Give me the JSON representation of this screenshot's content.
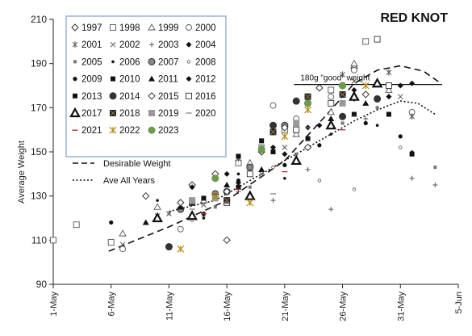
{
  "chart_data": {
    "type": "scatter",
    "title": "RED KNOT",
    "xlabel": "",
    "ylabel": "Average Weight",
    "xlim": [
      0,
      35
    ],
    "ylim": [
      90,
      210
    ],
    "x_ticks": [
      {
        "x": 0,
        "label": "1-May"
      },
      {
        "x": 5,
        "label": "6-May"
      },
      {
        "x": 10,
        "label": "11-May"
      },
      {
        "x": 15,
        "label": "16-May"
      },
      {
        "x": 20,
        "label": "21-May"
      },
      {
        "x": 25,
        "label": "26-May"
      },
      {
        "x": 30,
        "label": "31-May"
      },
      {
        "x": 35,
        "label": "5-Jun"
      }
    ],
    "y_ticks": [
      {
        "y": 90,
        "label": "90"
      },
      {
        "y": 110,
        "label": "110"
      },
      {
        "y": 130,
        "label": "130"
      },
      {
        "y": 150,
        "label": "150"
      },
      {
        "y": 170,
        "label": "170"
      },
      {
        "y": 190,
        "label": "190"
      },
      {
        "y": 210,
        "label": "210"
      }
    ],
    "x_unit_note": "x = days after 1-May",
    "good_weight": {
      "y": 180.5,
      "x_start": 20.8,
      "x_end": 33.6,
      "label": "180g \"good\" weight"
    },
    "series": [
      {
        "name": "1997",
        "marker": "diamond-open",
        "color": "#333333",
        "points": [
          [
            8,
            130
          ],
          [
            12,
            135
          ],
          [
            14,
            140
          ],
          [
            15,
            110
          ],
          [
            22,
            152
          ],
          [
            26,
            188
          ]
        ]
      },
      {
        "name": "1998",
        "marker": "square-open",
        "color": "#555555",
        "points": [
          [
            0,
            110
          ],
          [
            2,
            117
          ],
          [
            5,
            109
          ],
          [
            16,
            145
          ],
          [
            20,
            160
          ],
          [
            24,
            178
          ],
          [
            27,
            200
          ]
        ]
      },
      {
        "name": "1999",
        "marker": "triangle-open",
        "color": "#555555",
        "points": [
          [
            6,
            113
          ],
          [
            9,
            125
          ],
          [
            13,
            128
          ],
          [
            17,
            145
          ],
          [
            21,
            158
          ],
          [
            24,
            168
          ],
          [
            26,
            190
          ],
          [
            29,
            178
          ]
        ]
      },
      {
        "name": "2000",
        "marker": "circle-open",
        "color": "#555555",
        "points": [
          [
            6,
            106
          ],
          [
            11,
            115
          ],
          [
            19,
            171
          ],
          [
            21,
            165
          ],
          [
            24,
            175
          ],
          [
            26,
            187
          ],
          [
            31,
            168
          ]
        ]
      },
      {
        "name": "2001",
        "marker": "asterisk",
        "color": "#555555",
        "points": [
          [
            9,
            121
          ],
          [
            16,
            147
          ],
          [
            21,
            160
          ],
          [
            25,
            185
          ],
          [
            29,
            186
          ],
          [
            31,
            166
          ]
        ]
      },
      {
        "name": "2002",
        "marker": "x",
        "color": "#555555",
        "points": [
          [
            6,
            108
          ],
          [
            10,
            122
          ],
          [
            13,
            126
          ],
          [
            18,
            140
          ],
          [
            20,
            152
          ],
          [
            26,
            182
          ],
          [
            30,
            175
          ]
        ]
      },
      {
        "name": "2003",
        "marker": "plus",
        "color": "#555555",
        "points": [
          [
            13,
            121
          ],
          [
            16,
            132
          ],
          [
            19,
            128
          ],
          [
            22,
            142
          ],
          [
            24,
            124
          ],
          [
            27,
            165
          ],
          [
            31,
            138
          ],
          [
            33,
            135
          ]
        ]
      },
      {
        "name": "2004",
        "marker": "diamond-filled",
        "color": "#111111",
        "points": [
          [
            12,
            127
          ],
          [
            16,
            136
          ],
          [
            20,
            149
          ],
          [
            23,
            162
          ],
          [
            26,
            178
          ],
          [
            29,
            175
          ],
          [
            31,
            181
          ]
        ]
      },
      {
        "name": "2005",
        "marker": "square-small",
        "color": "#777777",
        "points": [
          [
            10,
            122
          ],
          [
            14,
            125
          ],
          [
            17,
            134
          ],
          [
            21,
            149
          ],
          [
            25,
            163
          ],
          [
            28,
            170
          ],
          [
            33,
            143
          ]
        ]
      },
      {
        "name": "2006",
        "marker": "dot-small",
        "color": "#111111",
        "points": [
          [
            9,
            128
          ],
          [
            13,
            120
          ],
          [
            16,
            140
          ],
          [
            20,
            138
          ],
          [
            24,
            158
          ],
          [
            28,
            162
          ],
          [
            31,
            150
          ]
        ]
      },
      {
        "name": "2007",
        "marker": "circle-filled-gray",
        "color": "#888888",
        "points": [
          [
            11,
            124
          ],
          [
            14,
            131
          ],
          [
            17,
            143
          ],
          [
            20,
            162
          ],
          [
            22,
            172
          ],
          [
            25,
            180
          ]
        ]
      },
      {
        "name": "2008",
        "marker": "dot-open-small",
        "color": "#555555",
        "points": [
          [
            12,
            119
          ],
          [
            15,
            128
          ],
          [
            19,
            143
          ],
          [
            23,
            137
          ],
          [
            26,
            133
          ],
          [
            30,
            152
          ]
        ]
      },
      {
        "name": "2009",
        "marker": "dot-filled",
        "color": "#111111",
        "points": [
          [
            5,
            118
          ],
          [
            13,
            122
          ],
          [
            16,
            137
          ],
          [
            20,
            144
          ],
          [
            23,
            153
          ],
          [
            27,
            163
          ],
          [
            30,
            157
          ]
        ]
      },
      {
        "name": "2010",
        "marker": "square-filled",
        "color": "#111111",
        "points": [
          [
            14,
            130
          ],
          [
            16,
            148
          ],
          [
            19,
            150
          ],
          [
            22,
            156
          ],
          [
            25,
            176
          ],
          [
            29,
            167
          ]
        ]
      },
      {
        "name": "2011",
        "marker": "triangle-filled",
        "color": "#111111",
        "points": [
          [
            8,
            118
          ],
          [
            11,
            125
          ],
          [
            15,
            135
          ],
          [
            18,
            142
          ],
          [
            21,
            147
          ],
          [
            24,
            165
          ],
          [
            27,
            172
          ]
        ]
      },
      {
        "name": "2012",
        "marker": "diamond-filled",
        "color": "#111111",
        "points": [
          [
            12,
            134
          ],
          [
            15,
            140
          ],
          [
            19,
            152
          ],
          [
            22,
            161
          ],
          [
            26,
            174
          ],
          [
            30,
            180
          ]
        ]
      },
      {
        "name": "2013",
        "marker": "square-filled",
        "color": "#111111",
        "points": [
          [
            13,
            129
          ],
          [
            16,
            134
          ],
          [
            18,
            155
          ],
          [
            21,
            160
          ],
          [
            26,
            167
          ],
          [
            31,
            149
          ]
        ]
      },
      {
        "name": "2014",
        "marker": "circle-big-dark",
        "color": "#333333",
        "points": [
          [
            10,
            107
          ],
          [
            15,
            132
          ],
          [
            19,
            162
          ],
          [
            21,
            173
          ],
          [
            25,
            166
          ],
          [
            28,
            174
          ]
        ]
      },
      {
        "name": "2015",
        "marker": "diamond-open",
        "color": "#333333",
        "points": [
          [
            11,
            127
          ],
          [
            15,
            132
          ],
          [
            18,
            150
          ],
          [
            20,
            161
          ],
          [
            23,
            179
          ],
          [
            27,
            176
          ]
        ]
      },
      {
        "name": "2016",
        "marker": "square-open",
        "color": "#333333",
        "points": [
          [
            15,
            127
          ],
          [
            17,
            140
          ],
          [
            21,
            160
          ],
          [
            24,
            172
          ],
          [
            28,
            201
          ],
          [
            29,
            180
          ]
        ]
      },
      {
        "name": "2017",
        "marker": "triangle-bold",
        "color": "#111111",
        "points": [
          [
            9,
            120
          ],
          [
            12,
            121
          ],
          [
            17,
            130
          ],
          [
            21,
            146
          ],
          [
            24,
            162
          ],
          [
            26,
            175
          ],
          [
            28,
            181
          ]
        ]
      },
      {
        "name": "2018",
        "marker": "square-x",
        "color": "#8b6f47",
        "points": [
          [
            12,
            127
          ],
          [
            15,
            128
          ],
          [
            19,
            159
          ],
          [
            22,
            175
          ],
          [
            25,
            176
          ]
        ]
      },
      {
        "name": "2019",
        "marker": "square-gray",
        "color": "#999999",
        "points": [
          [
            12,
            128
          ],
          [
            14,
            129
          ],
          [
            18,
            152
          ],
          [
            21,
            163
          ],
          [
            25,
            172
          ]
        ]
      },
      {
        "name": "2020",
        "marker": "dash",
        "color": "#777777",
        "points": [
          [
            12,
            124
          ],
          [
            15,
            127
          ],
          [
            19,
            131
          ],
          [
            22,
            161
          ],
          [
            26,
            166
          ]
        ]
      },
      {
        "name": "2021",
        "marker": "dash-red",
        "color": "#aa3333",
        "points": [
          [
            13,
            122
          ],
          [
            16,
            133
          ],
          [
            20,
            141
          ],
          [
            25,
            160
          ]
        ]
      },
      {
        "name": "2022",
        "marker": "asterisk-gold",
        "color": "#b8860b",
        "points": [
          [
            11,
            106
          ],
          [
            14,
            130
          ],
          [
            17,
            127
          ],
          [
            20,
            157
          ],
          [
            22,
            169
          ],
          [
            27,
            180
          ]
        ]
      },
      {
        "name": "2023",
        "marker": "circle-green",
        "color": "#6a9a4a",
        "points": [
          [
            14,
            138
          ],
          [
            18,
            151
          ],
          [
            22,
            172
          ],
          [
            25,
            180
          ]
        ]
      }
    ],
    "lines": [
      {
        "name": "Desirable Weight",
        "style": "dashed",
        "points": [
          [
            4.8,
            105
          ],
          [
            10,
            116
          ],
          [
            15,
            128
          ],
          [
            20,
            146
          ],
          [
            24,
            169
          ],
          [
            26,
            181
          ],
          [
            28,
            187
          ],
          [
            30,
            189
          ],
          [
            32,
            186.5
          ],
          [
            33.5,
            181
          ]
        ]
      },
      {
        "name": "Ave All Years",
        "style": "dotted",
        "points": [
          [
            10,
            123
          ],
          [
            14,
            128
          ],
          [
            18,
            140
          ],
          [
            22,
            152
          ],
          [
            26,
            164
          ],
          [
            28,
            169
          ],
          [
            30,
            173
          ],
          [
            31.5,
            172
          ],
          [
            33,
            167
          ]
        ]
      }
    ],
    "legend_position": "top-left",
    "grid": false
  }
}
